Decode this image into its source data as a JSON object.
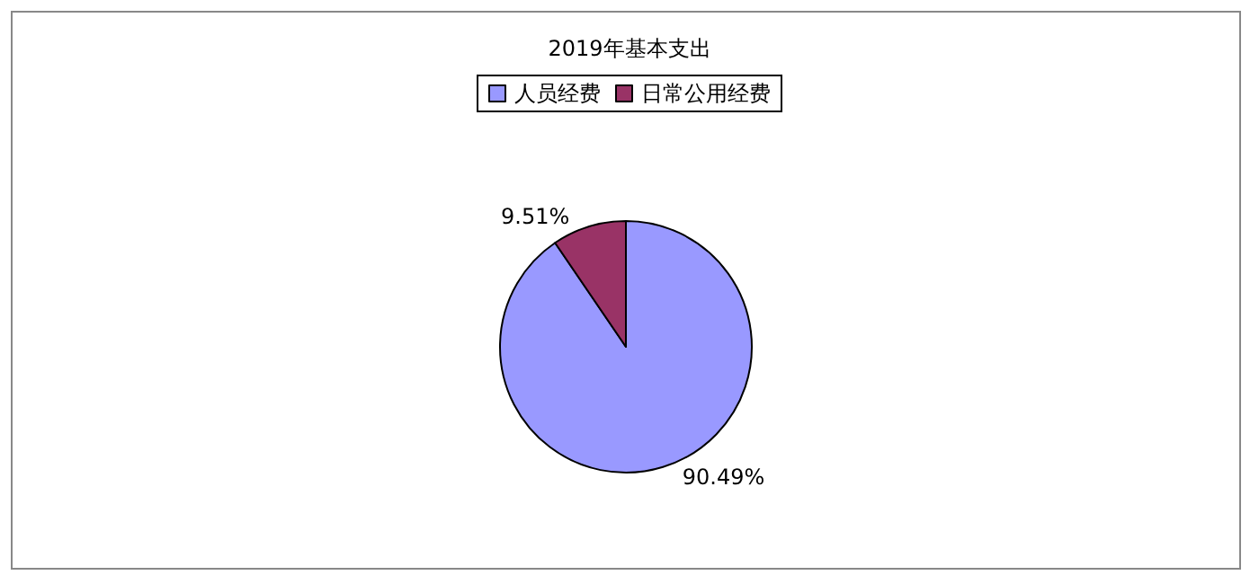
{
  "chart_data": {
    "type": "pie",
    "title": "2019年基本支出",
    "categories": [
      "人员经费",
      "日常公用经费"
    ],
    "values": [
      90.49,
      9.51
    ],
    "colors": [
      "#9999ff",
      "#993366"
    ],
    "value_labels": [
      "90.49%",
      "9.51%"
    ],
    "legend": "top"
  }
}
